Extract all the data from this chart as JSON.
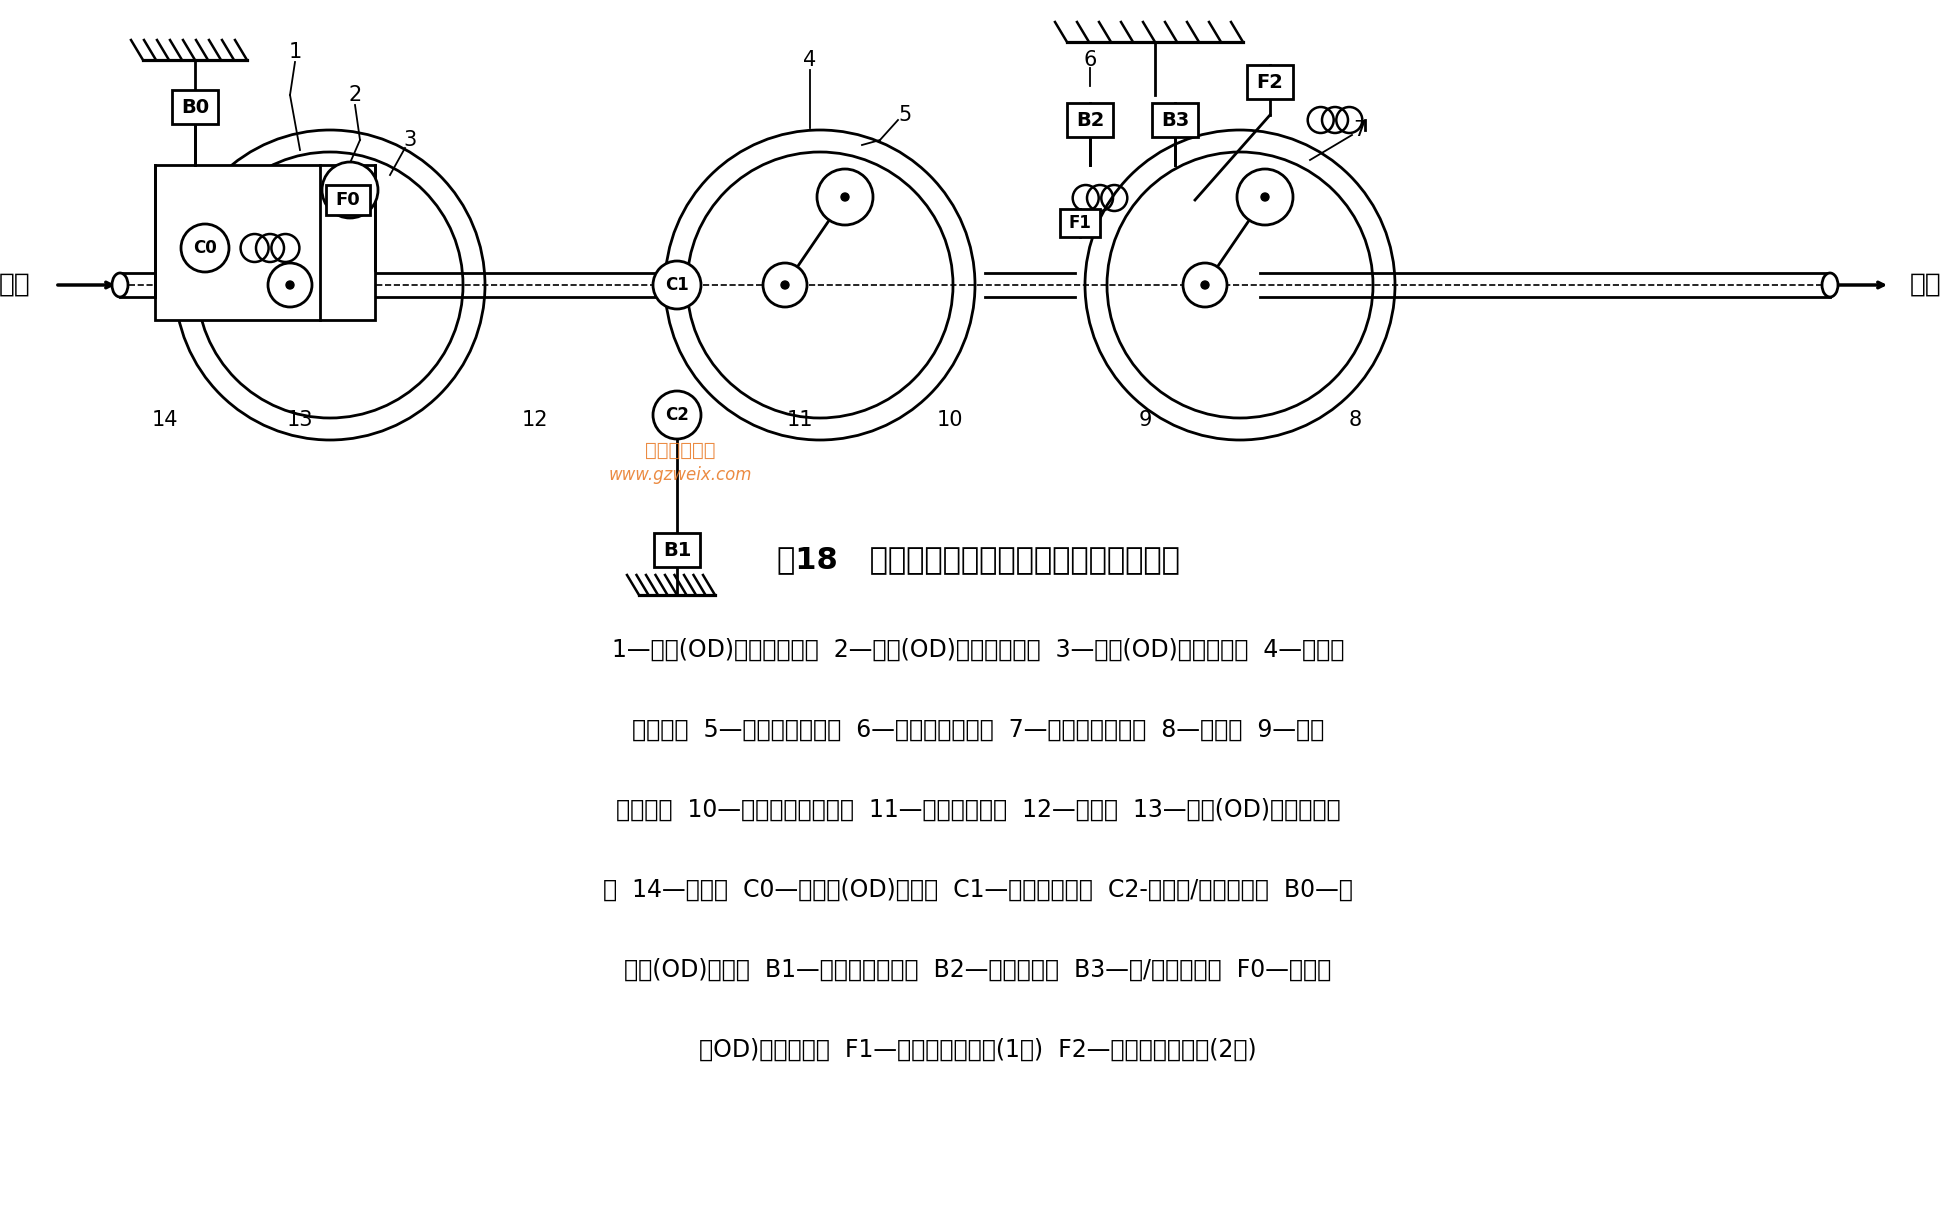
{
  "title": "图18   四档辛普森行星齿轮变速器的结构简图",
  "bg_color": "#ffffff",
  "text_color": "#000000",
  "legend_lines": [
    "1—超速(OD)行星排行星架  2—超速(OD)行星排行星轮  3—超速(OD)行星排齿圈  4—前行星",
    "排行星架  5—前行星排行星轮  6—后行星排行星架  7—后行星排行星轮  8—输出轴  9—后行",
    "星排齿圈  10—前后行星排太阳轮  11—前行星排齿圈  12—中间轴  13—超速(OD)行星排太阳",
    "轮  14—输入轴  C0—超速档(OD)离合器  C1—前进档离合器  C2-直接档/倒档离合器  B0—超",
    "速档(OD)制动器  B1—二档滑行制动器  B2—二档制动器  B3—低/倒档离合器  F0—超速档",
    "（OD)单向离合器  F1—二档单向离合器(1号)  F2—低档单向离合器(2号)"
  ],
  "input_label": "输入",
  "output_label": "输出",
  "watermark_line1": "精通汽修下载",
  "watermark_line2": "www.gzweix.com",
  "watermark_color": "#E87722"
}
